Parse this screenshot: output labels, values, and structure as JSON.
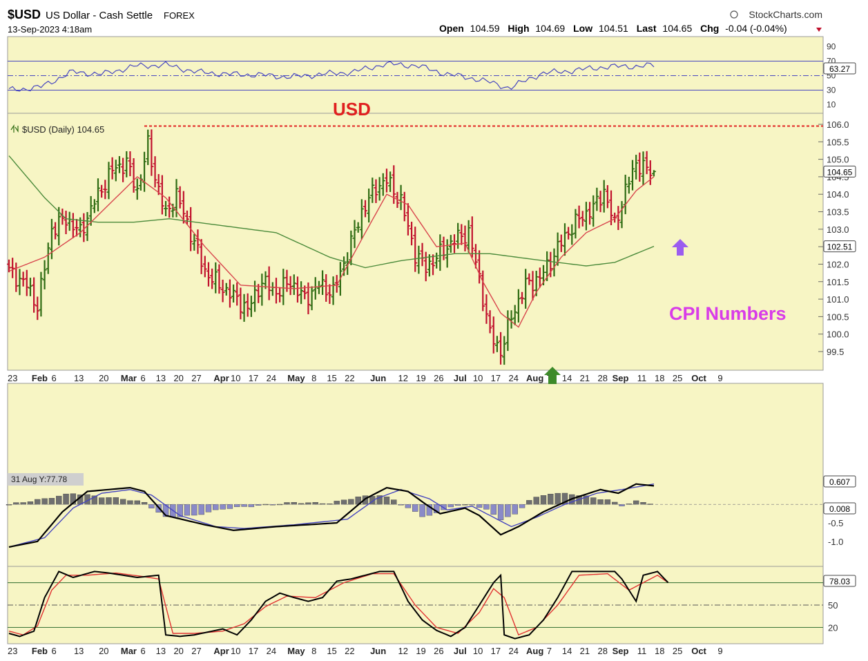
{
  "header": {
    "symbol": "$USD",
    "description": "US Dollar - Cash Settle",
    "exchange": "FOREX",
    "datetime": "13-Sep-2023 4:18am",
    "brand": "StockCharts.com",
    "open_label": "Open",
    "open": "104.59",
    "high_label": "High",
    "high": "104.69",
    "low_label": "Low",
    "low": "104.51",
    "last_label": "Last",
    "last": "104.65",
    "chg_label": "Chg",
    "chg": "-0.04 (-0.04%)"
  },
  "colors": {
    "panel_bg": "#f7f5c4",
    "up_bar": "#2e6b12",
    "down_bar": "#c0102c",
    "ema_fast": "#d8444c",
    "sma_slow": "#4a8a3a",
    "rsi_line": "#4646c0",
    "annotation_red": "#e02020",
    "annotation_magenta": "#d83ce8",
    "arrow_purple": "#9b5cf0",
    "arrow_green": "#3d8a2a"
  },
  "annotations": {
    "usd_label": "USD",
    "cpi_label": "CPI Numbers"
  },
  "chart_data": [
    {
      "type": "line",
      "name": "RSI",
      "value_label": "63.27",
      "ylim": [
        0,
        100
      ],
      "ticks": [
        "90",
        "70",
        "50",
        "30",
        "10"
      ],
      "levels": [
        70,
        50,
        30
      ],
      "x": [
        0,
        5,
        10,
        15,
        20,
        25,
        30,
        35,
        40,
        45,
        50,
        55,
        60,
        65,
        70,
        75,
        80,
        85,
        90,
        95,
        100,
        103
      ],
      "values": [
        30,
        34,
        55,
        52,
        63,
        65,
        55,
        52,
        51,
        48,
        52,
        55,
        66,
        64,
        52,
        45,
        33,
        53,
        57,
        62,
        63,
        64
      ]
    },
    {
      "type": "ohlc",
      "name": "$USD (Daily)",
      "legend_label": "$USD (Daily) 104.65",
      "last_label": "104.65",
      "sma_label": "102.51",
      "ylim": [
        99.2,
        106.4
      ],
      "ticks": [
        "106.0",
        "105.5",
        "105.0",
        "104.5",
        "104.0",
        "103.5",
        "103.0",
        "102.5",
        "102.0",
        "101.5",
        "101.0",
        "100.5",
        "100.0",
        "99.5"
      ],
      "resistance": 105.95,
      "x_ticks": [
        {
          "i": 0,
          "label": "23"
        },
        {
          "i": 9,
          "label": "Feb"
        },
        {
          "i": 13,
          "label": "6"
        },
        {
          "i": 20,
          "label": "13"
        },
        {
          "i": 27,
          "label": "20"
        },
        {
          "i": 34,
          "label": "Mar"
        },
        {
          "i": 38,
          "label": "6"
        },
        {
          "i": 43,
          "label": "13"
        },
        {
          "i": 48,
          "label": "20"
        },
        {
          "i": 53,
          "label": "27"
        },
        {
          "i": 60,
          "label": "Apr"
        },
        {
          "i": 64,
          "label": "10"
        },
        {
          "i": 69,
          "label": "17"
        },
        {
          "i": 74,
          "label": "24"
        },
        {
          "i": 81,
          "label": "May"
        },
        {
          "i": 86,
          "label": "8"
        },
        {
          "i": 91,
          "label": "15"
        },
        {
          "i": 96,
          "label": "22"
        },
        {
          "i": 104,
          "label": "Jun"
        },
        {
          "i": 111,
          "label": "12"
        },
        {
          "i": 116,
          "label": "19"
        },
        {
          "i": 121,
          "label": "26"
        },
        {
          "i": 127,
          "label": "Jul"
        },
        {
          "i": 132,
          "label": "10"
        },
        {
          "i": 137,
          "label": "17"
        },
        {
          "i": 142,
          "label": "24"
        },
        {
          "i": 148,
          "label": "Aug"
        },
        {
          "i": 152,
          "label": "7"
        },
        {
          "i": 157,
          "label": "14"
        },
        {
          "i": 162,
          "label": "21"
        },
        {
          "i": 167,
          "label": "28"
        },
        {
          "i": 172,
          "label": "Sep"
        },
        {
          "i": 178,
          "label": "11"
        },
        {
          "i": 183,
          "label": "18"
        },
        {
          "i": 188,
          "label": "25"
        },
        {
          "i": 194,
          "label": "Oct"
        },
        {
          "i": 200,
          "label": "9"
        }
      ],
      "close_anchors": [
        [
          0,
          101.8
        ],
        [
          5,
          101.4
        ],
        [
          8,
          100.8
        ],
        [
          12,
          103.0
        ],
        [
          16,
          103.3
        ],
        [
          20,
          102.9
        ],
        [
          24,
          103.8
        ],
        [
          29,
          104.7
        ],
        [
          33,
          104.9
        ],
        [
          36,
          104.1
        ],
        [
          39,
          105.4
        ],
        [
          41,
          104.5
        ],
        [
          44,
          103.4
        ],
        [
          47,
          104.0
        ],
        [
          51,
          102.9
        ],
        [
          55,
          101.8
        ],
        [
          59,
          101.4
        ],
        [
          64,
          101.0
        ],
        [
          67,
          100.7
        ],
        [
          71,
          101.5
        ],
        [
          75,
          101.2
        ],
        [
          79,
          101.5
        ],
        [
          83,
          101.0
        ],
        [
          87,
          101.4
        ],
        [
          91,
          101.2
        ],
        [
          95,
          102.3
        ],
        [
          99,
          103.5
        ],
        [
          103,
          104.2
        ],
        [
          106,
          104.4
        ],
        [
          110,
          103.8
        ],
        [
          114,
          102.3
        ],
        [
          117,
          101.9
        ],
        [
          121,
          102.3
        ],
        [
          125,
          102.7
        ],
        [
          129,
          102.9
        ],
        [
          132,
          101.6
        ],
        [
          135,
          100.0
        ],
        [
          138,
          99.5
        ],
        [
          141,
          100.5
        ],
        [
          145,
          101.4
        ],
        [
          149,
          101.6
        ],
        [
          152,
          102.1
        ],
        [
          156,
          102.8
        ],
        [
          160,
          103.3
        ],
        [
          164,
          103.6
        ],
        [
          167,
          104.1
        ],
        [
          170,
          103.1
        ],
        [
          173,
          104.1
        ],
        [
          176,
          104.9
        ],
        [
          179,
          104.7
        ],
        [
          181,
          104.6
        ]
      ],
      "ema_anchors": [
        [
          0,
          101.8
        ],
        [
          10,
          102.2
        ],
        [
          20,
          102.9
        ],
        [
          30,
          103.9
        ],
        [
          36,
          104.5
        ],
        [
          44,
          103.9
        ],
        [
          55,
          102.5
        ],
        [
          65,
          101.4
        ],
        [
          80,
          101.3
        ],
        [
          92,
          101.4
        ],
        [
          100,
          102.9
        ],
        [
          106,
          104.0
        ],
        [
          112,
          103.7
        ],
        [
          120,
          102.5
        ],
        [
          128,
          102.6
        ],
        [
          133,
          101.5
        ],
        [
          138,
          100.6
        ],
        [
          143,
          100.2
        ],
        [
          148,
          101.2
        ],
        [
          155,
          102.2
        ],
        [
          162,
          102.9
        ],
        [
          170,
          103.3
        ],
        [
          176,
          104.1
        ],
        [
          181,
          104.5
        ]
      ],
      "sma_anchors": [
        [
          0,
          105.1
        ],
        [
          10,
          103.9
        ],
        [
          16,
          103.3
        ],
        [
          25,
          103.2
        ],
        [
          35,
          103.2
        ],
        [
          45,
          103.3
        ],
        [
          60,
          103.1
        ],
        [
          75,
          102.9
        ],
        [
          90,
          102.2
        ],
        [
          100,
          101.9
        ],
        [
          110,
          102.1
        ],
        [
          125,
          102.3
        ],
        [
          135,
          102.3
        ],
        [
          150,
          102.1
        ],
        [
          162,
          101.95
        ],
        [
          170,
          102.05
        ],
        [
          181,
          102.51
        ]
      ]
    },
    {
      "type": "line",
      "name": "MACD",
      "annotation": "31 Aug Y:77.78",
      "value_label": "0.607",
      "signal_label": "0.008",
      "ylim": [
        -1.3,
        0.75
      ],
      "ticks": [
        {
          "v": -0.5,
          "label": "-0.5"
        },
        {
          "v": -1.0,
          "label": "-1.0"
        }
      ],
      "macd_anchors": [
        [
          0,
          -1.15
        ],
        [
          8,
          -1.0
        ],
        [
          15,
          -0.2
        ],
        [
          22,
          0.35
        ],
        [
          34,
          0.45
        ],
        [
          38,
          0.35
        ],
        [
          44,
          -0.3
        ],
        [
          55,
          -0.55
        ],
        [
          63,
          -0.7
        ],
        [
          75,
          -0.6
        ],
        [
          92,
          -0.5
        ],
        [
          100,
          0.15
        ],
        [
          106,
          0.45
        ],
        [
          112,
          0.35
        ],
        [
          117,
          0.0
        ],
        [
          121,
          -0.25
        ],
        [
          128,
          -0.1
        ],
        [
          132,
          -0.3
        ],
        [
          138,
          -0.82
        ],
        [
          143,
          -0.6
        ],
        [
          150,
          -0.2
        ],
        [
          158,
          0.15
        ],
        [
          166,
          0.4
        ],
        [
          171,
          0.3
        ],
        [
          176,
          0.55
        ],
        [
          181,
          0.5
        ]
      ],
      "signal_anchors": [
        [
          0,
          -1.15
        ],
        [
          10,
          -0.9
        ],
        [
          18,
          -0.1
        ],
        [
          26,
          0.3
        ],
        [
          34,
          0.4
        ],
        [
          40,
          0.25
        ],
        [
          48,
          -0.3
        ],
        [
          58,
          -0.6
        ],
        [
          66,
          -0.65
        ],
        [
          80,
          -0.55
        ],
        [
          95,
          -0.4
        ],
        [
          103,
          0.15
        ],
        [
          110,
          0.4
        ],
        [
          118,
          0.15
        ],
        [
          123,
          -0.15
        ],
        [
          130,
          -0.05
        ],
        [
          136,
          -0.35
        ],
        [
          141,
          -0.6
        ],
        [
          148,
          -0.35
        ],
        [
          156,
          0.0
        ],
        [
          165,
          0.3
        ],
        [
          172,
          0.4
        ],
        [
          181,
          0.55
        ]
      ],
      "hist_anchors": [
        [
          0,
          0
        ],
        [
          10,
          0.15
        ],
        [
          18,
          0.3
        ],
        [
          26,
          0.2
        ],
        [
          32,
          0.15
        ],
        [
          38,
          0.05
        ],
        [
          44,
          -0.35
        ],
        [
          52,
          -0.3
        ],
        [
          60,
          -0.12
        ],
        [
          70,
          -0.03
        ],
        [
          80,
          0.05
        ],
        [
          90,
          0.03
        ],
        [
          98,
          0.2
        ],
        [
          104,
          0.25
        ],
        [
          108,
          0.12
        ],
        [
          112,
          -0.1
        ],
        [
          116,
          -0.32
        ],
        [
          120,
          -0.25
        ],
        [
          124,
          -0.05
        ],
        [
          130,
          0.0
        ],
        [
          134,
          -0.15
        ],
        [
          138,
          -0.4
        ],
        [
          142,
          -0.28
        ],
        [
          146,
          0.12
        ],
        [
          152,
          0.3
        ],
        [
          158,
          0.28
        ],
        [
          164,
          0.18
        ],
        [
          168,
          0.12
        ],
        [
          172,
          -0.03
        ],
        [
          176,
          0.08
        ],
        [
          181,
          0.02
        ]
      ]
    },
    {
      "type": "line",
      "name": "Slow Stochastic",
      "value_label": "78.03",
      "ylim": [
        0,
        100
      ],
      "ticks": [
        "80",
        "50",
        "20"
      ],
      "levels": [
        80,
        50,
        20
      ],
      "k_anchors": [
        [
          0,
          12
        ],
        [
          3,
          8
        ],
        [
          7,
          15
        ],
        [
          10,
          60
        ],
        [
          14,
          95
        ],
        [
          18,
          87
        ],
        [
          24,
          95
        ],
        [
          28,
          93
        ],
        [
          32,
          90
        ],
        [
          36,
          87
        ],
        [
          42,
          90
        ],
        [
          44,
          10
        ],
        [
          48,
          8
        ],
        [
          52,
          10
        ],
        [
          60,
          18
        ],
        [
          64,
          10
        ],
        [
          68,
          30
        ],
        [
          72,
          55
        ],
        [
          76,
          66
        ],
        [
          80,
          60
        ],
        [
          84,
          55
        ],
        [
          88,
          60
        ],
        [
          92,
          82
        ],
        [
          96,
          85
        ],
        [
          100,
          90
        ],
        [
          104,
          95
        ],
        [
          108,
          95
        ],
        [
          112,
          55
        ],
        [
          116,
          30
        ],
        [
          120,
          16
        ],
        [
          124,
          8
        ],
        [
          128,
          20
        ],
        [
          132,
          50
        ],
        [
          136,
          80
        ],
        [
          138,
          90
        ],
        [
          139,
          10
        ],
        [
          142,
          5
        ],
        [
          146,
          10
        ],
        [
          150,
          30
        ],
        [
          154,
          60
        ],
        [
          158,
          95
        ],
        [
          164,
          95
        ],
        [
          170,
          95
        ],
        [
          172,
          85
        ],
        [
          176,
          55
        ],
        [
          178,
          90
        ],
        [
          182,
          95
        ],
        [
          185,
          80
        ]
      ],
      "d_anchors": [
        [
          0,
          15
        ],
        [
          4,
          10
        ],
        [
          8,
          22
        ],
        [
          12,
          70
        ],
        [
          16,
          90
        ],
        [
          22,
          90
        ],
        [
          30,
          93
        ],
        [
          38,
          88
        ],
        [
          42,
          85
        ],
        [
          46,
          12
        ],
        [
          52,
          12
        ],
        [
          60,
          15
        ],
        [
          66,
          25
        ],
        [
          72,
          48
        ],
        [
          78,
          62
        ],
        [
          86,
          60
        ],
        [
          94,
          80
        ],
        [
          102,
          92
        ],
        [
          108,
          92
        ],
        [
          114,
          50
        ],
        [
          120,
          20
        ],
        [
          126,
          12
        ],
        [
          132,
          40
        ],
        [
          136,
          72
        ],
        [
          139,
          60
        ],
        [
          143,
          10
        ],
        [
          148,
          20
        ],
        [
          154,
          50
        ],
        [
          160,
          90
        ],
        [
          168,
          92
        ],
        [
          174,
          70
        ],
        [
          178,
          80
        ],
        [
          182,
          90
        ],
        [
          185,
          80
        ]
      ]
    }
  ]
}
